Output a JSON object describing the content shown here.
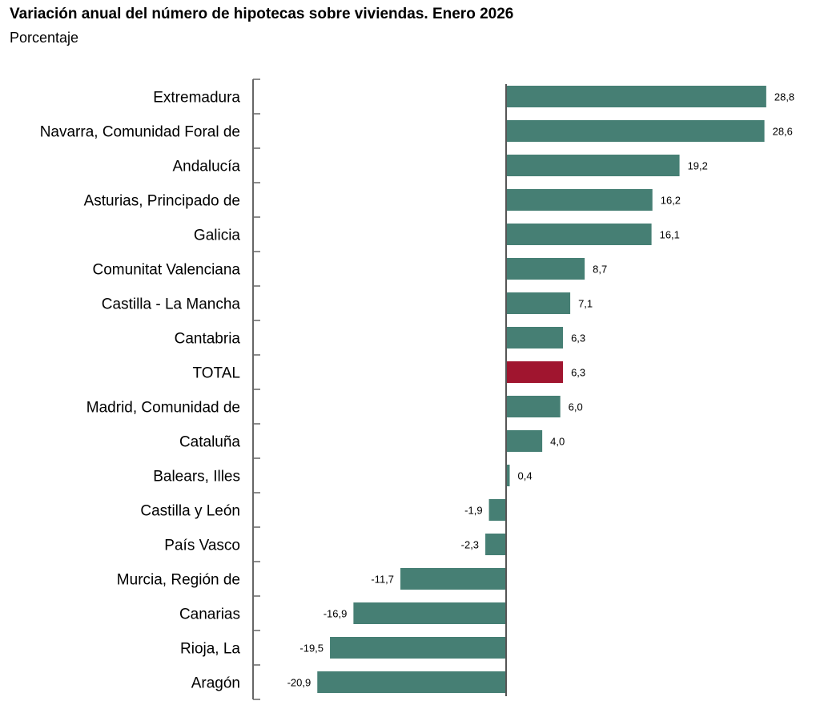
{
  "chart_data": {
    "type": "bar",
    "orientation": "horizontal",
    "title": "Variación anual del número de hipotecas sobre viviendas. Enero 2026",
    "subtitle": "Porcentaje",
    "categories": [
      "Extremadura",
      "Navarra, Comunidad Foral de",
      "Andalucía",
      "Asturias, Principado de",
      "Galicia",
      "Comunitat Valenciana",
      "Castilla - La Mancha",
      "Cantabria",
      "TOTAL",
      "Madrid, Comunidad de",
      "Cataluña",
      "Balears, Illes",
      "Castilla y León",
      "País Vasco",
      "Murcia, Región de",
      "Canarias",
      "Rioja, La",
      "Aragón"
    ],
    "values": [
      28.8,
      28.6,
      19.2,
      16.2,
      16.1,
      8.7,
      7.1,
      6.3,
      6.3,
      6.0,
      4.0,
      0.4,
      -1.9,
      -2.3,
      -11.7,
      -16.9,
      -19.5,
      -20.9
    ],
    "value_labels": [
      "28,8",
      "28,6",
      "19,2",
      "16,2",
      "16,1",
      "8,7",
      "7,1",
      "6,3",
      "6,3",
      "6,0",
      "4,0",
      "0,4",
      "-1,9",
      "-2,3",
      "-11,7",
      "-16,9",
      "-19,5",
      "-20,9"
    ],
    "highlight_category": "TOTAL",
    "xlim": [
      -20.9,
      28.8
    ],
    "grid": false,
    "legend": "none",
    "colors": {
      "bar": "#467f74",
      "highlight": "#a0152f",
      "axis": "#666666"
    }
  }
}
